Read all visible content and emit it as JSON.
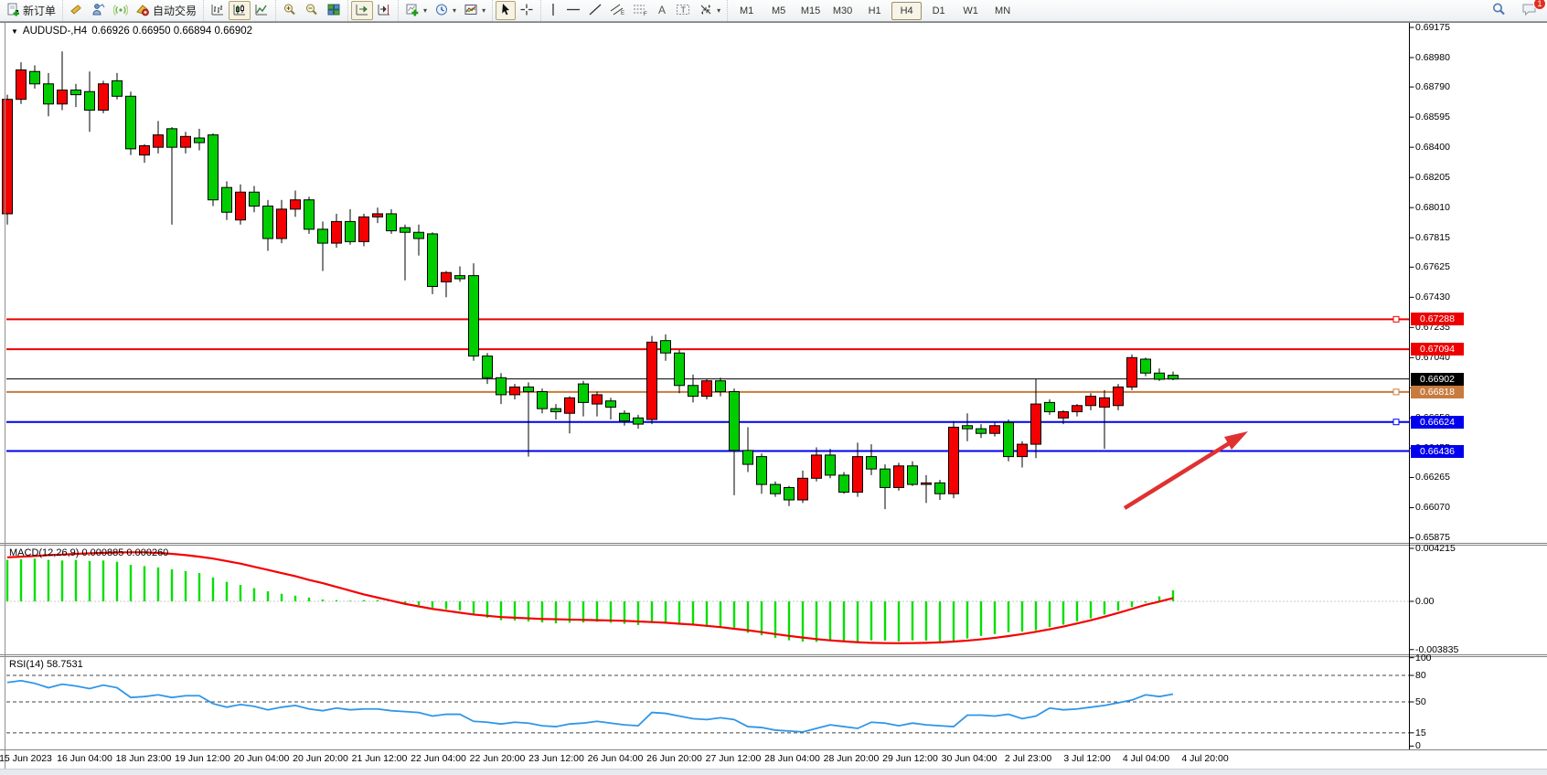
{
  "toolbar": {
    "new_order_label": "新订单",
    "autotrading_label": "自动交易",
    "timeframes": [
      {
        "label": "M1",
        "active": false
      },
      {
        "label": "M5",
        "active": false
      },
      {
        "label": "M15",
        "active": false
      },
      {
        "label": "M30",
        "active": false
      },
      {
        "label": "H1",
        "active": false
      },
      {
        "label": "H4",
        "active": true
      },
      {
        "label": "D1",
        "active": false
      },
      {
        "label": "W1",
        "active": false
      },
      {
        "label": "MN",
        "active": false
      }
    ],
    "notification_count": "1"
  },
  "chart_header": {
    "symbol": "AUDUSD-,H4",
    "ohlc": "0.66926 0.66950 0.66894 0.66902"
  },
  "price_axis": {
    "ticks": [
      "0.69175",
      "0.68980",
      "0.68790",
      "0.68595",
      "0.68400",
      "0.68205",
      "0.68010",
      "0.67815",
      "0.67625",
      "0.67430",
      "0.67235",
      "0.67040",
      "0.66845",
      "0.66650",
      "0.66455",
      "0.66265",
      "0.66070",
      "0.65875"
    ]
  },
  "levels": [
    {
      "price": "0.67288",
      "color": "#ee0000",
      "width": 2,
      "handle": true
    },
    {
      "price": "0.67094",
      "color": "#ee0000",
      "width": 2,
      "handle": false
    },
    {
      "price": "0.66902",
      "color": "#000000",
      "width": 1,
      "handle": false,
      "current": true
    },
    {
      "price": "0.66818",
      "color": "#c87b3e",
      "width": 2,
      "handle": true
    },
    {
      "price": "0.66624",
      "color": "#0000ee",
      "width": 2,
      "handle": true
    },
    {
      "price": "0.66436",
      "color": "#0000ee",
      "width": 2,
      "handle": false
    }
  ],
  "time_axis": {
    "labels": [
      "15 Jun 2023",
      "16 Jun 04:00",
      "18 Jun 23:00",
      "19 Jun 12:00",
      "20 Jun 04:00",
      "20 Jun 20:00",
      "21 Jun 12:00",
      "22 Jun 04:00",
      "22 Jun 20:00",
      "23 Jun 12:00",
      "26 Jun 04:00",
      "26 Jun 20:00",
      "27 Jun 12:00",
      "28 Jun 04:00",
      "28 Jun 20:00",
      "29 Jun 12:00",
      "30 Jun 04:00",
      "2 Jul 23:00",
      "3 Jul 12:00",
      "4 Jul 04:00",
      "4 Jul 20:00"
    ]
  },
  "indicators": {
    "macd": {
      "label": "MACD(12,26,9)",
      "values_label": "0.000885 0.000260",
      "ticks": [
        "0.004215",
        "0.00",
        "-0.003835"
      ]
    },
    "rsi": {
      "label": "RSI(14)",
      "value_label": "58.7531",
      "ticks": [
        "100",
        "80",
        "50",
        "15",
        "0"
      ]
    }
  },
  "annotation_arrow": {
    "color": "#e03131",
    "from": [
      1230,
      556
    ],
    "to": [
      1363,
      473
    ]
  },
  "chart_data": [
    {
      "type": "candlestick",
      "title": "AUDUSD- H4",
      "note": "Chinese color convention: red = bullish(up), green = bearish(down)",
      "bull_color": "#f50000",
      "bear_color": "#00cd00",
      "ylim": [
        0.65855,
        0.692
      ],
      "x_labels": [
        "15 Jun 2023",
        "16 Jun 04:00",
        "18 Jun 23:00",
        "19 Jun 12:00",
        "20 Jun 04:00",
        "20 Jun 20:00",
        "21 Jun 12:00",
        "22 Jun 04:00",
        "22 Jun 20:00",
        "23 Jun 12:00",
        "26 Jun 04:00",
        "26 Jun 20:00",
        "27 Jun 12:00",
        "28 Jun 04:00",
        "28 Jun 20:00",
        "29 Jun 12:00",
        "30 Jun 04:00",
        "2 Jul 23:00",
        "3 Jul 12:00",
        "4 Jul 04:00",
        "4 Jul 20:00"
      ],
      "ohlc": [
        [
          0.6797,
          0.6874,
          0.679,
          0.6871
        ],
        [
          0.6871,
          0.6895,
          0.6868,
          0.689
        ],
        [
          0.6889,
          0.6893,
          0.6878,
          0.6881
        ],
        [
          0.6881,
          0.6888,
          0.686,
          0.6868
        ],
        [
          0.6868,
          0.6902,
          0.6864,
          0.6877
        ],
        [
          0.6877,
          0.6881,
          0.6866,
          0.6874
        ],
        [
          0.6876,
          0.6889,
          0.685,
          0.6864
        ],
        [
          0.6864,
          0.6883,
          0.6862,
          0.6881
        ],
        [
          0.6883,
          0.6888,
          0.6871,
          0.6873
        ],
        [
          0.6873,
          0.6876,
          0.6835,
          0.6839
        ],
        [
          0.6835,
          0.6842,
          0.683,
          0.6841
        ],
        [
          0.684,
          0.6857,
          0.6836,
          0.6848
        ],
        [
          0.6852,
          0.6853,
          0.679,
          0.684
        ],
        [
          0.684,
          0.685,
          0.6836,
          0.6847
        ],
        [
          0.6846,
          0.6852,
          0.6838,
          0.6843
        ],
        [
          0.6848,
          0.6849,
          0.6802,
          0.6806
        ],
        [
          0.6814,
          0.6818,
          0.6793,
          0.6798
        ],
        [
          0.6793,
          0.6816,
          0.679,
          0.6811
        ],
        [
          0.6811,
          0.6815,
          0.6798,
          0.6802
        ],
        [
          0.6802,
          0.6806,
          0.6773,
          0.6781
        ],
        [
          0.6781,
          0.6806,
          0.6778,
          0.68
        ],
        [
          0.68,
          0.6812,
          0.6795,
          0.6806
        ],
        [
          0.6806,
          0.6808,
          0.6784,
          0.6787
        ],
        [
          0.6787,
          0.6792,
          0.676,
          0.6778
        ],
        [
          0.6778,
          0.6797,
          0.6775,
          0.6792
        ],
        [
          0.6792,
          0.68,
          0.6777,
          0.6779
        ],
        [
          0.6779,
          0.6797,
          0.6776,
          0.6795
        ],
        [
          0.6795,
          0.6801,
          0.6791,
          0.6797
        ],
        [
          0.6797,
          0.68,
          0.6784,
          0.6786
        ],
        [
          0.6788,
          0.679,
          0.6754,
          0.6785
        ],
        [
          0.6785,
          0.679,
          0.677,
          0.6781
        ],
        [
          0.6784,
          0.6785,
          0.6745,
          0.675
        ],
        [
          0.6753,
          0.676,
          0.6743,
          0.6759
        ],
        [
          0.6757,
          0.6763,
          0.6753,
          0.6755
        ],
        [
          0.6757,
          0.6765,
          0.6702,
          0.6705
        ],
        [
          0.6705,
          0.6707,
          0.6687,
          0.6691
        ],
        [
          0.6691,
          0.6694,
          0.6674,
          0.668
        ],
        [
          0.668,
          0.6687,
          0.6677,
          0.6685
        ],
        [
          0.6685,
          0.6688,
          0.664,
          0.6682
        ],
        [
          0.6682,
          0.6684,
          0.6668,
          0.6671
        ],
        [
          0.6671,
          0.6674,
          0.6664,
          0.6669
        ],
        [
          0.6668,
          0.6679,
          0.6655,
          0.6678
        ],
        [
          0.6687,
          0.6689,
          0.6666,
          0.6675
        ],
        [
          0.6674,
          0.6682,
          0.6666,
          0.668
        ],
        [
          0.6676,
          0.6678,
          0.6664,
          0.6672
        ],
        [
          0.6668,
          0.667,
          0.666,
          0.6663
        ],
        [
          0.6665,
          0.6667,
          0.6658,
          0.6661
        ],
        [
          0.6664,
          0.6718,
          0.6661,
          0.6714
        ],
        [
          0.6715,
          0.6719,
          0.6702,
          0.6707
        ],
        [
          0.6707,
          0.6709,
          0.6681,
          0.6686
        ],
        [
          0.6686,
          0.6693,
          0.6675,
          0.6679
        ],
        [
          0.6679,
          0.669,
          0.6677,
          0.6689
        ],
        [
          0.6689,
          0.6691,
          0.6679,
          0.6682
        ],
        [
          0.6682,
          0.6684,
          0.6615,
          0.6644
        ],
        [
          0.6644,
          0.6659,
          0.663,
          0.6635
        ],
        [
          0.664,
          0.6642,
          0.6616,
          0.6622
        ],
        [
          0.6622,
          0.6624,
          0.6614,
          0.6616
        ],
        [
          0.662,
          0.6621,
          0.6608,
          0.6612
        ],
        [
          0.6612,
          0.6631,
          0.661,
          0.6626
        ],
        [
          0.6626,
          0.6646,
          0.6624,
          0.6641
        ],
        [
          0.6641,
          0.6645,
          0.6626,
          0.6628
        ],
        [
          0.6628,
          0.663,
          0.6616,
          0.6617
        ],
        [
          0.6617,
          0.6649,
          0.6614,
          0.664
        ],
        [
          0.664,
          0.6648,
          0.6628,
          0.6632
        ],
        [
          0.6632,
          0.6635,
          0.6606,
          0.662
        ],
        [
          0.662,
          0.6636,
          0.6618,
          0.6634
        ],
        [
          0.6634,
          0.6637,
          0.6621,
          0.6622
        ],
        [
          0.6622,
          0.6628,
          0.661,
          0.6623
        ],
        [
          0.6623,
          0.6625,
          0.6612,
          0.6616
        ],
        [
          0.6616,
          0.6663,
          0.6613,
          0.6659
        ],
        [
          0.666,
          0.6668,
          0.665,
          0.6658
        ],
        [
          0.6658,
          0.6661,
          0.6652,
          0.6655
        ],
        [
          0.6655,
          0.6662,
          0.6653,
          0.666
        ],
        [
          0.6662,
          0.6664,
          0.6637,
          0.664
        ],
        [
          0.664,
          0.665,
          0.6633,
          0.6648
        ],
        [
          0.6648,
          0.669,
          0.6639,
          0.6674
        ],
        [
          0.6675,
          0.6677,
          0.6667,
          0.6669
        ],
        [
          0.6665,
          0.667,
          0.6661,
          0.6669
        ],
        [
          0.6669,
          0.6674,
          0.6666,
          0.6673
        ],
        [
          0.6673,
          0.6681,
          0.667,
          0.6679
        ],
        [
          0.6672,
          0.6683,
          0.6645,
          0.6678
        ],
        [
          0.6673,
          0.6687,
          0.667,
          0.6685
        ],
        [
          0.6685,
          0.6706,
          0.6683,
          0.6704
        ],
        [
          0.6703,
          0.6704,
          0.6692,
          0.6694
        ],
        [
          0.6694,
          0.6697,
          0.6689,
          0.669
        ],
        [
          0.66926,
          0.6695,
          0.66894,
          0.66902
        ]
      ],
      "horizontal_levels": [
        0.67288,
        0.67094,
        0.66902,
        0.66818,
        0.66624,
        0.66436
      ]
    },
    {
      "type": "bar",
      "name": "MACD(12,26,9)",
      "current_macd": 0.000885,
      "current_signal": 0.00026,
      "hist_color": "#00e000",
      "signal_color": "#f50000",
      "ylim": [
        -0.003835,
        0.004215
      ],
      "hist": [
        0.0033,
        0.00335,
        0.0034,
        0.0033,
        0.00325,
        0.0033,
        0.0032,
        0.00325,
        0.00315,
        0.0029,
        0.0028,
        0.0027,
        0.00255,
        0.0024,
        0.00225,
        0.0019,
        0.00155,
        0.0013,
        0.00105,
        0.0008,
        0.0006,
        0.00045,
        0.0003,
        0.00015,
        0.0001,
        5e-05,
        0.0001,
        0.0001,
        5e-05,
        -0.00015,
        -0.0003,
        -0.0005,
        -0.00062,
        -0.00072,
        -0.0011,
        -0.0013,
        -0.0015,
        -0.00152,
        -0.0016,
        -0.00168,
        -0.00175,
        -0.0017,
        -0.00168,
        -0.00162,
        -0.0017,
        -0.00178,
        -0.00188,
        -0.0016,
        -0.00162,
        -0.0017,
        -0.0019,
        -0.002,
        -0.00205,
        -0.0021,
        -0.0025,
        -0.0027,
        -0.0029,
        -0.0031,
        -0.0032,
        -0.00322,
        -0.0031,
        -0.00312,
        -0.0032,
        -0.0031,
        -0.00312,
        -0.0032,
        -0.0031,
        -0.00312,
        -0.0032,
        -0.00322,
        -0.00295,
        -0.00275,
        -0.0026,
        -0.00245,
        -0.0024,
        -0.0023,
        -0.00205,
        -0.00185,
        -0.0016,
        -0.00135,
        -0.00105,
        -0.00075,
        -0.00045,
        -0.0001,
        0.0004,
        0.000885
      ],
      "signal": [
        0.0035,
        0.00355,
        0.0036,
        0.00368,
        0.00372,
        0.00378,
        0.00382,
        0.00386,
        0.00389,
        0.0039,
        0.0039,
        0.00385,
        0.00378,
        0.00368,
        0.00355,
        0.0034,
        0.0032,
        0.003,
        0.00275,
        0.0025,
        0.00225,
        0.002,
        0.0017,
        0.00145,
        0.00115,
        0.00085,
        0.00055,
        0.0003,
        5e-05,
        -0.0002,
        -0.0004,
        -0.0006,
        -0.00075,
        -0.0009,
        -0.00105,
        -0.00115,
        -0.00125,
        -0.0013,
        -0.00135,
        -0.0014,
        -0.00142,
        -0.00145,
        -0.00147,
        -0.0015,
        -0.00152,
        -0.00155,
        -0.0016,
        -0.00165,
        -0.0017,
        -0.00178,
        -0.00185,
        -0.00195,
        -0.00205,
        -0.00218,
        -0.0023,
        -0.00245,
        -0.0026,
        -0.00275,
        -0.00288,
        -0.003,
        -0.0031,
        -0.00318,
        -0.00325,
        -0.0033,
        -0.00332,
        -0.00333,
        -0.00332,
        -0.0033,
        -0.00326,
        -0.0032,
        -0.00312,
        -0.00302,
        -0.0029,
        -0.00276,
        -0.0026,
        -0.00242,
        -0.00222,
        -0.002,
        -0.00176,
        -0.0015,
        -0.00122,
        -0.00092,
        -0.0006,
        -0.00028,
        -2e-05,
        0.00026
      ]
    },
    {
      "type": "line",
      "name": "RSI(14)",
      "last_value": 58.7531,
      "color": "#2f96e8",
      "range": [
        0,
        100
      ],
      "levels": [
        80,
        50,
        15
      ],
      "values": [
        72,
        74,
        71,
        66,
        70,
        68,
        65,
        69,
        66,
        55,
        56,
        58,
        55,
        57,
        57,
        48,
        44,
        47,
        45,
        41,
        44,
        46,
        42,
        40,
        43,
        41,
        42,
        42,
        40,
        39,
        38,
        34,
        36,
        36,
        28,
        27,
        25,
        27,
        26,
        23,
        22,
        25,
        26,
        28,
        26,
        24,
        23,
        38,
        37,
        34,
        31,
        30,
        32,
        30,
        22,
        21,
        18,
        17,
        16,
        20,
        24,
        22,
        20,
        27,
        26,
        23,
        26,
        24,
        23,
        22,
        35,
        35,
        34,
        36,
        31,
        34,
        43,
        41,
        42,
        44,
        46,
        49,
        52,
        58,
        56,
        58.75
      ]
    }
  ]
}
